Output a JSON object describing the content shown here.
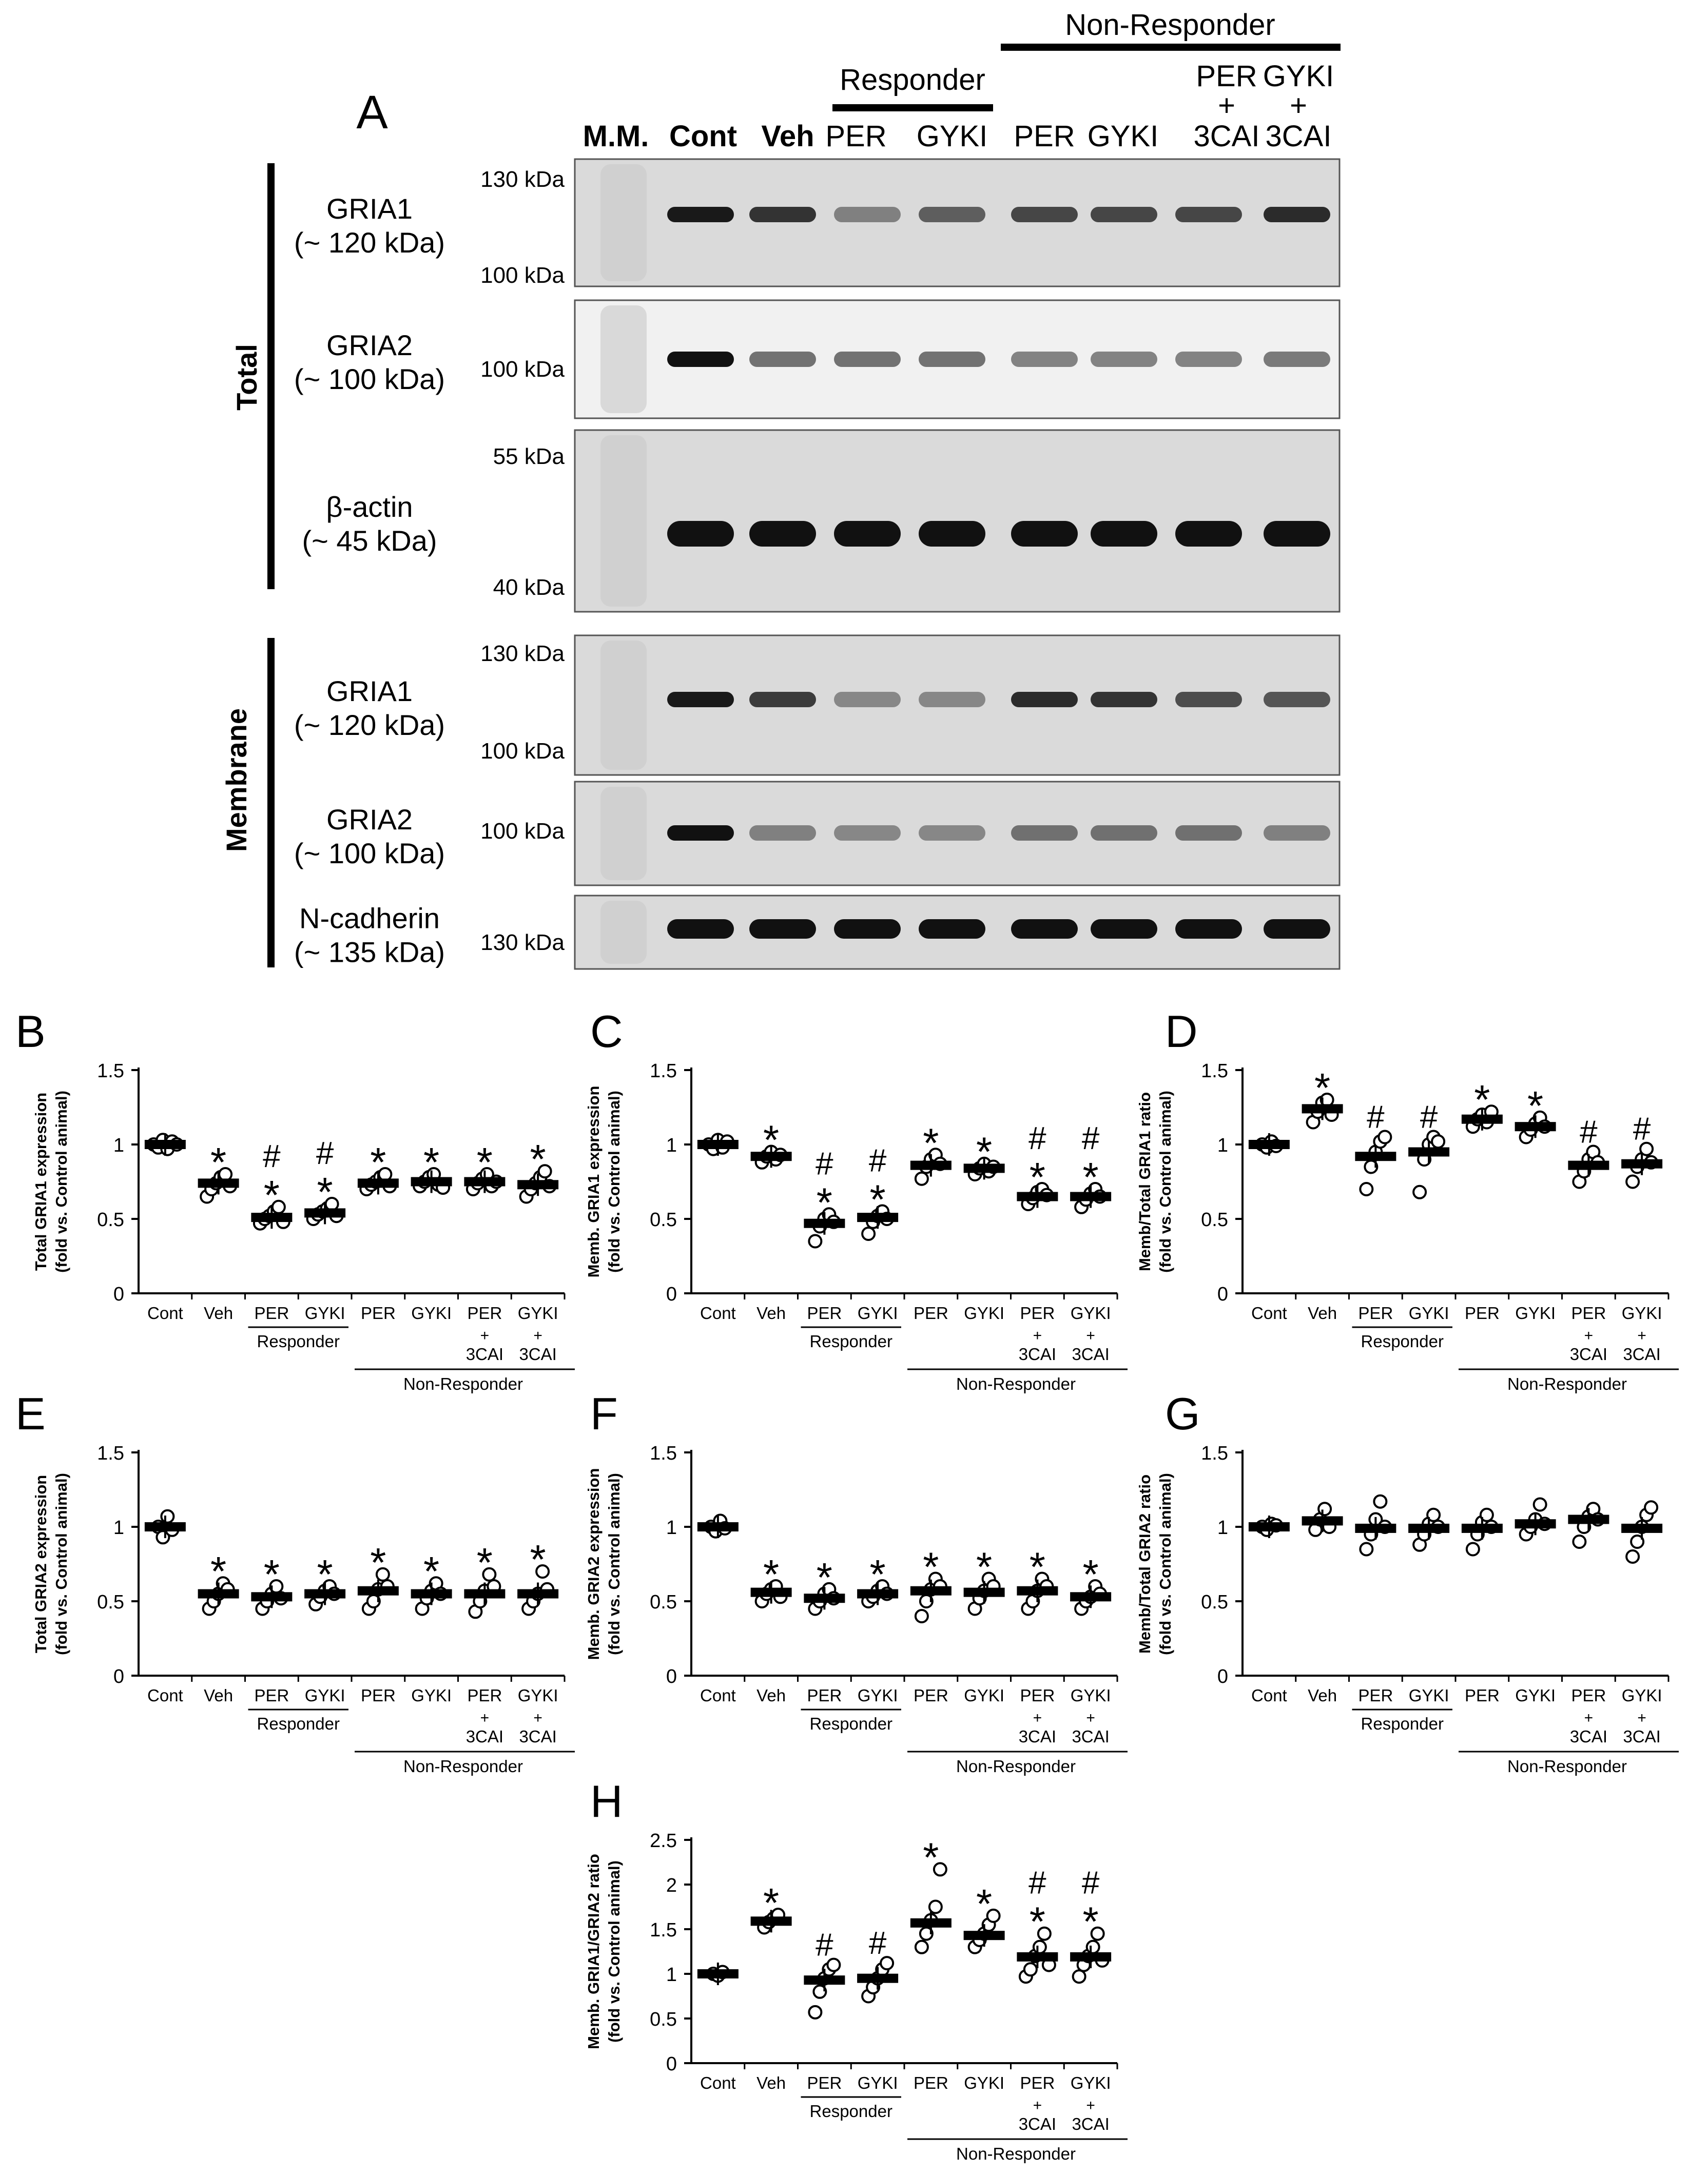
{
  "colors": {
    "ink": "#000000",
    "blot_bg_light": "#e8e8e8",
    "blot_bg_dark": "#dadada",
    "band": "#111111",
    "marker_band": "#c9c9c9"
  },
  "blot": {
    "panel_letter": "A",
    "lane_labels": [
      "M.M.",
      "Cont",
      "Veh",
      "PER",
      "GYKI",
      "PER",
      "GYKI",
      "PER",
      "GYKI"
    ],
    "lane_label_lines2": [
      "",
      "",
      "",
      "",
      "",
      "",
      "",
      "+",
      "+"
    ],
    "lane_label_lines3": [
      "",
      "",
      "",
      "",
      "",
      "",
      "",
      "3CAI",
      "3CAI"
    ],
    "responder_label": "Responder",
    "nonresponder_label": "Non-Responder",
    "group_total": "Total",
    "group_membrane": "Membrane",
    "rows": [
      {
        "name": "GRIA1",
        "size": "(~ 120 kDa)",
        "markers": [
          "130 kDa",
          "100 kDa"
        ],
        "intensity": [
          0.95,
          0.8,
          0.35,
          0.55,
          0.7,
          0.7,
          0.7,
          0.85
        ]
      },
      {
        "name": "GRIA2",
        "size": "(~ 100 kDa)",
        "markers": [
          "100 kDa"
        ],
        "intensity": [
          1.0,
          0.5,
          0.5,
          0.5,
          0.4,
          0.4,
          0.4,
          0.45
        ]
      },
      {
        "name": "β-actin",
        "size": "(~ 45 kDa)",
        "markers": [
          "55 kDa",
          "40 kDa"
        ],
        "intensity": [
          1,
          1,
          1,
          1,
          1,
          1,
          1,
          1
        ]
      },
      {
        "name": "GRIA1",
        "size": "(~ 120 kDa)",
        "markers": [
          "130 kDa",
          "100 kDa"
        ],
        "intensity": [
          0.95,
          0.75,
          0.3,
          0.3,
          0.85,
          0.8,
          0.65,
          0.6
        ]
      },
      {
        "name": "GRIA2",
        "size": "(~ 100 kDa)",
        "markers": [
          "100 kDa"
        ],
        "intensity": [
          1.0,
          0.35,
          0.3,
          0.3,
          0.45,
          0.45,
          0.45,
          0.35
        ]
      },
      {
        "name": "N-cadherin",
        "size": "(~ 135 kDa)",
        "markers": [
          "130 kDa"
        ],
        "intensity": [
          1,
          1,
          1,
          1,
          1,
          1,
          1,
          1
        ]
      }
    ]
  },
  "chart_data": [
    {
      "type": "scatter",
      "panel": "B",
      "ylabel": [
        "Total GRIA1 expression",
        "(fold vs. Control animal)"
      ],
      "ylim": [
        0,
        1.5
      ],
      "yticks": [
        "0",
        "0.5",
        "1",
        "1.5"
      ],
      "yticks_v": [
        0,
        0.5,
        1,
        1.5
      ],
      "categories": [
        "Cont",
        "Veh",
        "PER",
        "GYKI",
        "PER",
        "GYKI",
        "PER",
        "GYKI"
      ],
      "means": [
        1.0,
        0.74,
        0.51,
        0.54,
        0.74,
        0.75,
        0.75,
        0.73
      ],
      "points": [
        [
          1.0,
          0.98,
          1.03,
          0.97,
          1.02,
          1.0
        ],
        [
          0.65,
          0.7,
          0.74,
          0.78,
          0.8,
          0.72
        ],
        [
          0.47,
          0.5,
          0.52,
          0.55,
          0.58,
          0.48
        ],
        [
          0.5,
          0.53,
          0.55,
          0.57,
          0.6,
          0.52
        ],
        [
          0.7,
          0.73,
          0.75,
          0.78,
          0.8,
          0.72
        ],
        [
          0.72,
          0.75,
          0.78,
          0.8,
          0.73,
          0.71
        ],
        [
          0.7,
          0.74,
          0.77,
          0.8,
          0.72,
          0.75
        ],
        [
          0.65,
          0.7,
          0.74,
          0.78,
          0.82,
          0.72
        ]
      ],
      "marks": [
        "",
        "*",
        "#*",
        "#*",
        "*",
        "*",
        "*",
        "*"
      ]
    },
    {
      "type": "scatter",
      "panel": "C",
      "ylabel": [
        "Memb. GRIA1 expression",
        "(fold vs. Control animal)"
      ],
      "ylim": [
        0,
        1.5
      ],
      "yticks": [
        "0",
        "0.5",
        "1",
        "1.5"
      ],
      "yticks_v": [
        0,
        0.5,
        1,
        1.5
      ],
      "categories": [
        "Cont",
        "Veh",
        "PER",
        "GYKI",
        "PER",
        "GYKI",
        "PER",
        "GYKI"
      ],
      "means": [
        1.0,
        0.92,
        0.47,
        0.51,
        0.86,
        0.84,
        0.65,
        0.65
      ],
      "points": [
        [
          1.0,
          0.97,
          1.03,
          0.98,
          1.02
        ],
        [
          0.88,
          0.92,
          0.95,
          0.9,
          0.93
        ],
        [
          0.35,
          0.45,
          0.5,
          0.53,
          0.48
        ],
        [
          0.4,
          0.48,
          0.52,
          0.55,
          0.5
        ],
        [
          0.77,
          0.85,
          0.9,
          0.93,
          0.87
        ],
        [
          0.8,
          0.84,
          0.87,
          0.82,
          0.85
        ],
        [
          0.6,
          0.64,
          0.68,
          0.7,
          0.66
        ],
        [
          0.58,
          0.63,
          0.67,
          0.7,
          0.65
        ]
      ],
      "marks": [
        "",
        "*",
        "#*",
        "#*",
        "*",
        "*",
        "#*",
        "#*"
      ]
    },
    {
      "type": "scatter",
      "panel": "D",
      "ylabel": [
        "Memb/Total GRIA1 ratio",
        "(fold vs. Control animal)"
      ],
      "ylim": [
        0,
        1.5
      ],
      "yticks": [
        "0",
        "0.5",
        "1",
        "1.5"
      ],
      "yticks_v": [
        0,
        0.5,
        1,
        1.5
      ],
      "categories": [
        "Cont",
        "Veh",
        "PER",
        "GYKI",
        "PER",
        "GYKI",
        "PER",
        "GYKI"
      ],
      "means": [
        1.0,
        1.24,
        0.92,
        0.95,
        1.17,
        1.12,
        0.86,
        0.87
      ],
      "points": [
        [
          1.0,
          0.98,
          1.02,
          0.99
        ],
        [
          1.15,
          1.22,
          1.28,
          1.3,
          1.2
        ],
        [
          0.7,
          0.85,
          0.95,
          1.02,
          1.05
        ],
        [
          0.68,
          0.9,
          1.0,
          1.05,
          1.02
        ],
        [
          1.12,
          1.17,
          1.2,
          1.15,
          1.22
        ],
        [
          1.05,
          1.1,
          1.14,
          1.18,
          1.12
        ],
        [
          0.75,
          0.82,
          0.9,
          0.95,
          0.88
        ],
        [
          0.75,
          0.85,
          0.9,
          0.97,
          0.88
        ]
      ],
      "marks": [
        "",
        "*",
        "#",
        "#",
        "*",
        "*",
        "#",
        "#"
      ]
    },
    {
      "type": "scatter",
      "panel": "E",
      "ylabel": [
        "Total GRIA2 expression",
        "(fold vs. Control animal)"
      ],
      "ylim": [
        0,
        1.5
      ],
      "yticks": [
        "0",
        "0.5",
        "1",
        "1.5"
      ],
      "yticks_v": [
        0,
        0.5,
        1,
        1.5
      ],
      "categories": [
        "Cont",
        "Veh",
        "PER",
        "GYKI",
        "PER",
        "GYKI",
        "PER",
        "GYKI"
      ],
      "means": [
        1.0,
        0.55,
        0.53,
        0.55,
        0.57,
        0.55,
        0.55,
        0.55
      ],
      "points": [
        [
          1.0,
          0.93,
          1.07,
          0.98
        ],
        [
          0.45,
          0.5,
          0.55,
          0.62,
          0.58
        ],
        [
          0.45,
          0.5,
          0.55,
          0.6,
          0.52
        ],
        [
          0.48,
          0.53,
          0.57,
          0.6,
          0.55
        ],
        [
          0.45,
          0.5,
          0.58,
          0.68,
          0.6
        ],
        [
          0.45,
          0.52,
          0.57,
          0.62,
          0.55
        ],
        [
          0.43,
          0.5,
          0.57,
          0.68,
          0.6
        ],
        [
          0.45,
          0.5,
          0.55,
          0.7,
          0.58
        ]
      ],
      "marks": [
        "",
        "*",
        "*",
        "*",
        "*",
        "*",
        "*",
        "*"
      ]
    },
    {
      "type": "scatter",
      "panel": "F",
      "ylabel": [
        "Memb. GRIA2 expression",
        "(fold vs. Control animal)"
      ],
      "ylim": [
        0,
        1.5
      ],
      "yticks": [
        "0",
        "0.5",
        "1",
        "1.5"
      ],
      "yticks_v": [
        0,
        0.5,
        1,
        1.5
      ],
      "categories": [
        "Cont",
        "Veh",
        "PER",
        "GYKI",
        "PER",
        "GYKI",
        "PER",
        "GYKI"
      ],
      "means": [
        1.0,
        0.56,
        0.52,
        0.55,
        0.57,
        0.56,
        0.57,
        0.53
      ],
      "points": [
        [
          1.0,
          0.97,
          1.04,
          0.99
        ],
        [
          0.5,
          0.55,
          0.58,
          0.6,
          0.53
        ],
        [
          0.45,
          0.5,
          0.55,
          0.58,
          0.52
        ],
        [
          0.5,
          0.53,
          0.57,
          0.6,
          0.55
        ],
        [
          0.4,
          0.5,
          0.58,
          0.65,
          0.6
        ],
        [
          0.45,
          0.52,
          0.57,
          0.65,
          0.6
        ],
        [
          0.45,
          0.5,
          0.57,
          0.65,
          0.6
        ],
        [
          0.45,
          0.5,
          0.53,
          0.6,
          0.55
        ]
      ],
      "marks": [
        "",
        "*",
        "*",
        "*",
        "*",
        "*",
        "*",
        "*"
      ]
    },
    {
      "type": "scatter",
      "panel": "G",
      "ylabel": [
        "Memb/Total GRIA2 ratio",
        "(fold vs. Control animal)"
      ],
      "ylim": [
        0,
        1.5
      ],
      "yticks": [
        "0",
        "0.5",
        "1",
        "1.5"
      ],
      "yticks_v": [
        0,
        0.5,
        1,
        1.5
      ],
      "categories": [
        "Cont",
        "Veh",
        "PER",
        "GYKI",
        "PER",
        "GYKI",
        "PER",
        "GYKI"
      ],
      "means": [
        1.0,
        1.04,
        0.99,
        0.99,
        0.99,
        1.02,
        1.05,
        0.99
      ],
      "points": [
        [
          1.0,
          0.98,
          1.02,
          1.01
        ],
        [
          0.98,
          1.05,
          1.12,
          1.0
        ],
        [
          0.85,
          0.95,
          1.05,
          1.17,
          1.0
        ],
        [
          0.88,
          0.95,
          1.02,
          1.08,
          1.0
        ],
        [
          0.85,
          0.95,
          1.03,
          1.08,
          1.0
        ],
        [
          0.95,
          1.0,
          1.05,
          1.15,
          1.02
        ],
        [
          0.9,
          1.0,
          1.07,
          1.12,
          1.05
        ],
        [
          0.8,
          0.9,
          1.0,
          1.08,
          1.13
        ]
      ],
      "marks": [
        "",
        "",
        "",
        "",
        "",
        "",
        "",
        ""
      ]
    },
    {
      "type": "scatter",
      "panel": "H",
      "ylabel": [
        "Memb. GRIA1/GRIA2 ratio",
        "(fold vs. Control animal)"
      ],
      "ylim": [
        0,
        2.5
      ],
      "yticks": [
        "0",
        "0.5",
        "1",
        "1.5",
        "2",
        "2.5"
      ],
      "yticks_v": [
        0,
        0.5,
        1,
        1.5,
        2,
        2.5
      ],
      "categories": [
        "Cont",
        "Veh",
        "PER",
        "GYKI",
        "PER",
        "GYKI",
        "PER",
        "GYKI"
      ],
      "means": [
        1.0,
        1.59,
        0.93,
        0.95,
        1.57,
        1.43,
        1.19,
        1.19
      ],
      "points": [
        [
          1.0,
          0.98,
          1.02
        ],
        [
          1.52,
          1.58,
          1.62,
          1.66
        ],
        [
          0.57,
          0.8,
          0.95,
          1.05,
          1.1
        ],
        [
          0.75,
          0.85,
          0.95,
          1.05,
          1.12
        ],
        [
          1.3,
          1.45,
          1.6,
          1.75,
          2.17
        ],
        [
          1.3,
          1.38,
          1.45,
          1.55,
          1.65
        ],
        [
          0.97,
          1.05,
          1.2,
          1.3,
          1.45,
          1.1
        ],
        [
          0.97,
          1.1,
          1.2,
          1.3,
          1.45,
          1.15
        ]
      ],
      "marks": [
        "",
        "*",
        "#",
        "#",
        "*",
        "*",
        "#*",
        "#*"
      ]
    }
  ],
  "xaxis": {
    "sub_plus": "+",
    "sub_3cai": "3CAI",
    "responder": "Responder",
    "nonresponder": "Non-Responder"
  }
}
